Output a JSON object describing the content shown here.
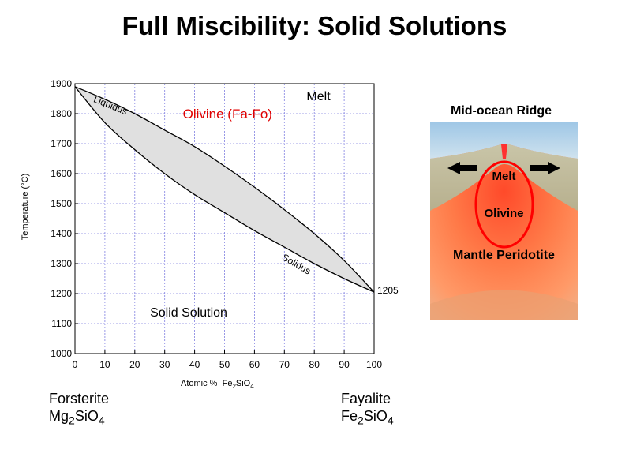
{
  "title": "Full Miscibility: Solid Solutions",
  "chart_data": {
    "type": "line",
    "xlabel_prefix": "Atomic %",
    "xlabel_formula": [
      "Fe",
      "2",
      "SiO",
      "4"
    ],
    "ylabel": "Temperature (°C)",
    "xlim": [
      0,
      100
    ],
    "ylim": [
      1000,
      1900
    ],
    "x_ticks": [
      0,
      10,
      20,
      30,
      40,
      50,
      60,
      70,
      80,
      90,
      100
    ],
    "y_ticks": [
      1000,
      1100,
      1200,
      1300,
      1400,
      1500,
      1600,
      1700,
      1800,
      1900
    ],
    "grid": true,
    "series": [
      {
        "name": "Liquidus",
        "x": [
          0,
          10,
          20,
          30,
          40,
          50,
          60,
          70,
          80,
          90,
          100
        ],
        "y": [
          1890,
          1848,
          1800,
          1745,
          1690,
          1625,
          1555,
          1480,
          1400,
          1310,
          1205
        ]
      },
      {
        "name": "Solidus",
        "x": [
          0,
          10,
          20,
          30,
          40,
          50,
          60,
          70,
          80,
          90,
          100
        ],
        "y": [
          1890,
          1770,
          1680,
          1600,
          1530,
          1470,
          1410,
          1355,
          1300,
          1250,
          1205
        ]
      }
    ],
    "annotations": [
      {
        "text": "Melt",
        "x": 79,
        "y": 1860
      },
      {
        "text": "Olivine (Fa-Fo)",
        "x": 51,
        "y": 1800,
        "color": "#e00000"
      },
      {
        "text": "Solid Solution",
        "x": 38,
        "y": 1140
      },
      {
        "text": "1205",
        "x": 100,
        "y": 1210
      }
    ],
    "region_fill": "#e0e0e0"
  },
  "endmembers": {
    "left": {
      "name": "Forsterite",
      "formula": [
        "Mg",
        "2",
        "SiO",
        "4"
      ]
    },
    "right": {
      "name": "Fayalite",
      "formula": [
        "Fe",
        "2",
        "SiO",
        "4"
      ]
    }
  },
  "ridge": {
    "title": "Mid-ocean Ridge",
    "labels": {
      "melt": "Melt",
      "olivine": "Olivine",
      "mantle": "Mantle Peridotite"
    },
    "highlight_color": "#ff0000"
  }
}
